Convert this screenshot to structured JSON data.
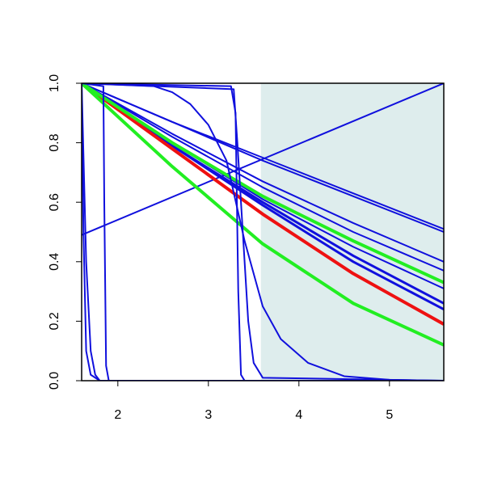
{
  "chart_data": {
    "type": "line",
    "xlim": [
      1.6,
      5.6
    ],
    "ylim": [
      0,
      1
    ],
    "xticks": [
      2,
      3,
      4,
      5
    ],
    "yticks": [
      {
        "value": 0,
        "label": "0.0"
      },
      0.2,
      0.4,
      0.6,
      0.8,
      {
        "value": 1,
        "label": "1.0"
      }
    ],
    "shaded_region": {
      "xlim": [
        3.58,
        5.6
      ],
      "color": "#deeded"
    },
    "series": [
      {
        "color": "#1010dd",
        "width": 2,
        "x": [
          1.6,
          5.6
        ],
        "values": [
          0.49,
          1.0
        ]
      },
      {
        "color": "#1010dd",
        "width": 2,
        "x": [
          1.6,
          2.6,
          3.6,
          4.6,
          5.6
        ],
        "values": [
          1,
          0.87,
          0.75,
          0.63,
          0.51
        ]
      },
      {
        "color": "#1010dd",
        "width": 2,
        "x": [
          1.6,
          2.6,
          3.6,
          4.6,
          5.6
        ],
        "values": [
          1,
          0.87,
          0.74,
          0.62,
          0.5
        ]
      },
      {
        "color": "#1010dd",
        "width": 2,
        "x": [
          1.6,
          2.6,
          3.6,
          4.6,
          5.6
        ],
        "values": [
          1,
          0.83,
          0.67,
          0.53,
          0.4
        ]
      },
      {
        "color": "#1010dd",
        "width": 2,
        "x": [
          1.6,
          2.6,
          3.6,
          4.6,
          5.6
        ],
        "values": [
          1,
          0.82,
          0.65,
          0.5,
          0.37
        ]
      },
      {
        "color": "#1010dd",
        "width": 2,
        "x": [
          1.6,
          2.6,
          3.6,
          4.6,
          5.6
        ],
        "values": [
          1,
          0.8,
          0.61,
          0.45,
          0.31
        ]
      },
      {
        "color": "#1010dd",
        "width": 3,
        "x": [
          1.6,
          2.6,
          3.6,
          4.6,
          5.6
        ],
        "values": [
          1,
          0.79,
          0.6,
          0.42,
          0.26
        ]
      },
      {
        "color": "#1010dd",
        "width": 3,
        "x": [
          1.6,
          2.6,
          3.6,
          4.6,
          5.6
        ],
        "values": [
          1,
          0.79,
          0.59,
          0.4,
          0.24
        ]
      },
      {
        "color": "#ee1111",
        "width": 4,
        "x": [
          1.6,
          2.6,
          3.6,
          4.6,
          5.6
        ],
        "values": [
          1,
          0.78,
          0.56,
          0.36,
          0.19
        ]
      },
      {
        "color": "#22ee22",
        "width": 4,
        "x": [
          1.6,
          2.6,
          3.6,
          4.6,
          5.6
        ],
        "values": [
          1,
          0.8,
          0.62,
          0.47,
          0.33
        ]
      },
      {
        "color": "#22ee22",
        "width": 4,
        "x": [
          1.6,
          2.6,
          3.6,
          4.6,
          5.6
        ],
        "values": [
          1,
          0.72,
          0.46,
          0.26,
          0.12
        ]
      },
      {
        "color": "#1010dd",
        "width": 2,
        "x": [
          1.6,
          1.62,
          1.65,
          1.7,
          1.8,
          5.6
        ],
        "values": [
          1,
          0.5,
          0.1,
          0.02,
          0,
          0
        ]
      },
      {
        "color": "#1010dd",
        "width": 2,
        "x": [
          1.6,
          1.65,
          1.7,
          1.75,
          1.8,
          5.6
        ],
        "values": [
          1,
          0.4,
          0.1,
          0.02,
          0,
          0
        ]
      },
      {
        "color": "#1010dd",
        "width": 2,
        "x": [
          1.6,
          1.84,
          1.85,
          1.87,
          1.9,
          5.6
        ],
        "values": [
          1,
          0.99,
          0.6,
          0.05,
          0,
          0
        ]
      },
      {
        "color": "#1010dd",
        "width": 2,
        "x": [
          1.6,
          3.25,
          3.3,
          3.33,
          3.36,
          3.4,
          5.6
        ],
        "values": [
          1,
          0.99,
          0.9,
          0.3,
          0.02,
          0,
          0
        ]
      },
      {
        "color": "#1010dd",
        "width": 2,
        "x": [
          1.6,
          3.28,
          3.32,
          3.38,
          3.44,
          3.5,
          3.6,
          5.6
        ],
        "values": [
          1,
          0.98,
          0.8,
          0.5,
          0.2,
          0.06,
          0.01,
          0
        ]
      },
      {
        "color": "#1010dd",
        "width": 2,
        "x": [
          1.6,
          2.4,
          2.6,
          2.8,
          3.0,
          3.2,
          3.4,
          3.6,
          3.8,
          4.1,
          4.5,
          5.0,
          5.6
        ],
        "values": [
          1,
          0.99,
          0.97,
          0.93,
          0.86,
          0.74,
          0.47,
          0.25,
          0.14,
          0.06,
          0.015,
          0.003,
          0
        ]
      }
    ]
  }
}
